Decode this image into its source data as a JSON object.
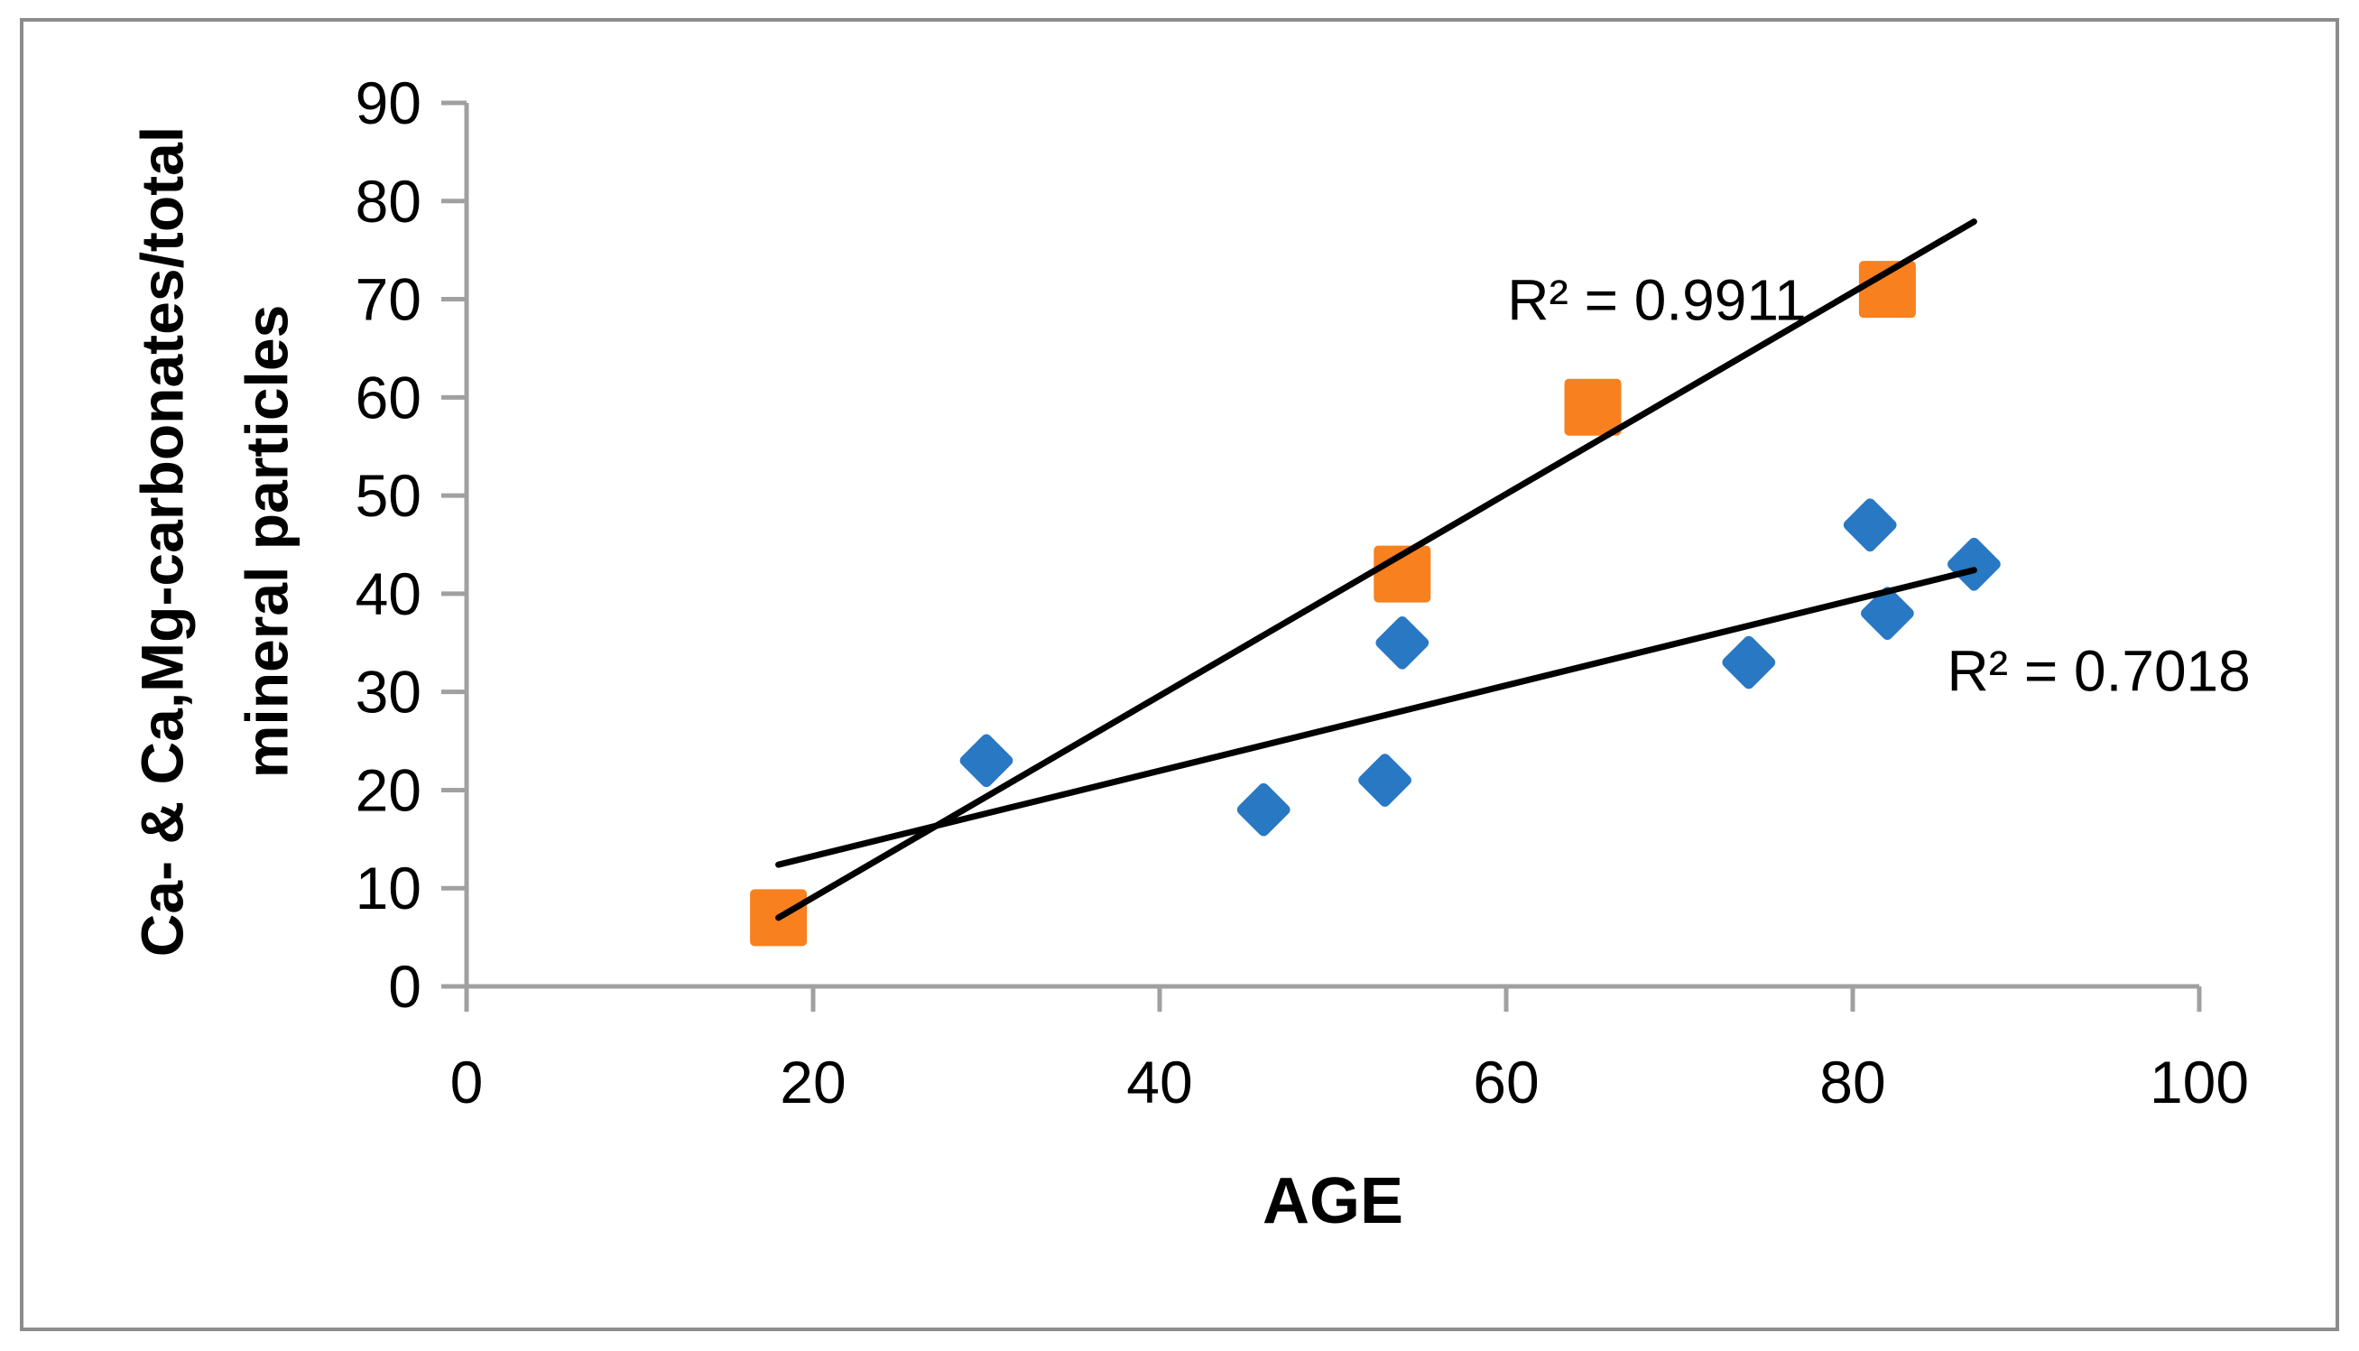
{
  "figure": {
    "xlabel": "AGE",
    "ylabel_line1": "Ca- & Ca,Mg-carbonates/total",
    "ylabel_line2": "mineral particles"
  },
  "colors": {
    "orange_series": "#F8801E",
    "blue_series": "#2878C4",
    "trendline": "#000000",
    "axis": "#A0A0A0",
    "border": "#8C8C8C",
    "text": "#000000"
  },
  "chart_data": {
    "type": "scatter",
    "title": "",
    "xlabel": "AGE",
    "ylabel": "Ca- & Ca,Mg-carbonates/total mineral particles",
    "xlim": [
      0,
      100
    ],
    "ylim": [
      0,
      90
    ],
    "x_ticks": [
      0,
      20,
      40,
      60,
      80,
      100
    ],
    "y_ticks": [
      0,
      10,
      20,
      30,
      40,
      50,
      60,
      70,
      80,
      90
    ],
    "grid": false,
    "legend": "none",
    "series": [
      {
        "name": "orange-squares",
        "marker": "square",
        "color": "#F8801E",
        "points": [
          [
            18,
            7
          ],
          [
            54,
            42
          ],
          [
            65,
            59
          ],
          [
            82,
            71
          ]
        ],
        "trendline": {
          "x1": 18,
          "y1": 7.0,
          "x2": 87,
          "y2": 77.9
        },
        "r_squared_label": "R² = 0.9911"
      },
      {
        "name": "blue-diamonds",
        "marker": "diamond",
        "color": "#2878C4",
        "points": [
          [
            30,
            23
          ],
          [
            46,
            18
          ],
          [
            53,
            21
          ],
          [
            54,
            35
          ],
          [
            74,
            33
          ],
          [
            81,
            47
          ],
          [
            82,
            38
          ],
          [
            87,
            43
          ]
        ],
        "trendline": {
          "x1": 18,
          "y1": 12.4,
          "x2": 87,
          "y2": 42.4
        },
        "r_squared_label": "R² = 0.7018"
      }
    ],
    "annotations": [
      {
        "text": "R² = 0.9911",
        "x": 68.7,
        "y": 70.0
      },
      {
        "text": "R² = 0.7018",
        "x": 94.2,
        "y": 32.2
      }
    ]
  }
}
